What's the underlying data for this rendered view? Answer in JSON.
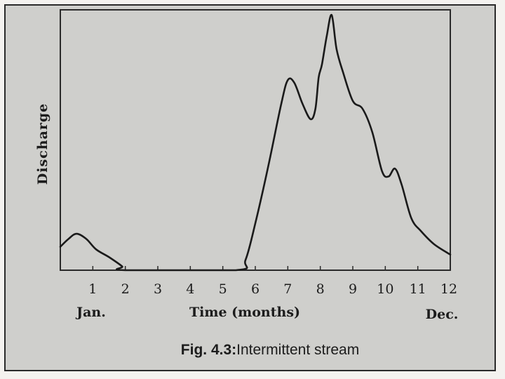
{
  "chart_data": {
    "type": "line",
    "title": "",
    "xlabel": "Time (months)",
    "ylabel": "Discharge",
    "xlim": [
      0,
      12
    ],
    "ylim": [
      0,
      10
    ],
    "grid": false,
    "x_ticks": [
      "1",
      "2",
      "3",
      "4",
      "5",
      "6",
      "7",
      "8",
      "9",
      "10",
      "11",
      "12"
    ],
    "x_start_label": "Jan.",
    "x_end_label": "Dec.",
    "series": [
      {
        "x": [
          0,
          0.25,
          0.5,
          0.8,
          1.1,
          1.5,
          1.9,
          2,
          5.4,
          5.7,
          6,
          6.4,
          6.8,
          7,
          7.2,
          7.45,
          7.7,
          7.85,
          7.95,
          8.05,
          8.2,
          8.35,
          8.5,
          8.7,
          9,
          9.3,
          9.6,
          9.9,
          10.1,
          10.3,
          10.5,
          10.8,
          11.1,
          11.5,
          12
        ],
        "y": [
          0.9,
          1.2,
          1.4,
          1.2,
          0.8,
          0.5,
          0.15,
          0,
          0,
          0.4,
          1.8,
          4.0,
          6.4,
          7.3,
          7.2,
          6.4,
          5.8,
          6.2,
          7.4,
          7.9,
          9.0,
          9.8,
          8.5,
          7.6,
          6.5,
          6.2,
          5.3,
          3.8,
          3.6,
          3.9,
          3.3,
          2.0,
          1.5,
          1.0,
          0.6
        ]
      }
    ]
  },
  "caption": {
    "label": "Fig. 4.3:",
    "text": "Intermittent stream"
  }
}
